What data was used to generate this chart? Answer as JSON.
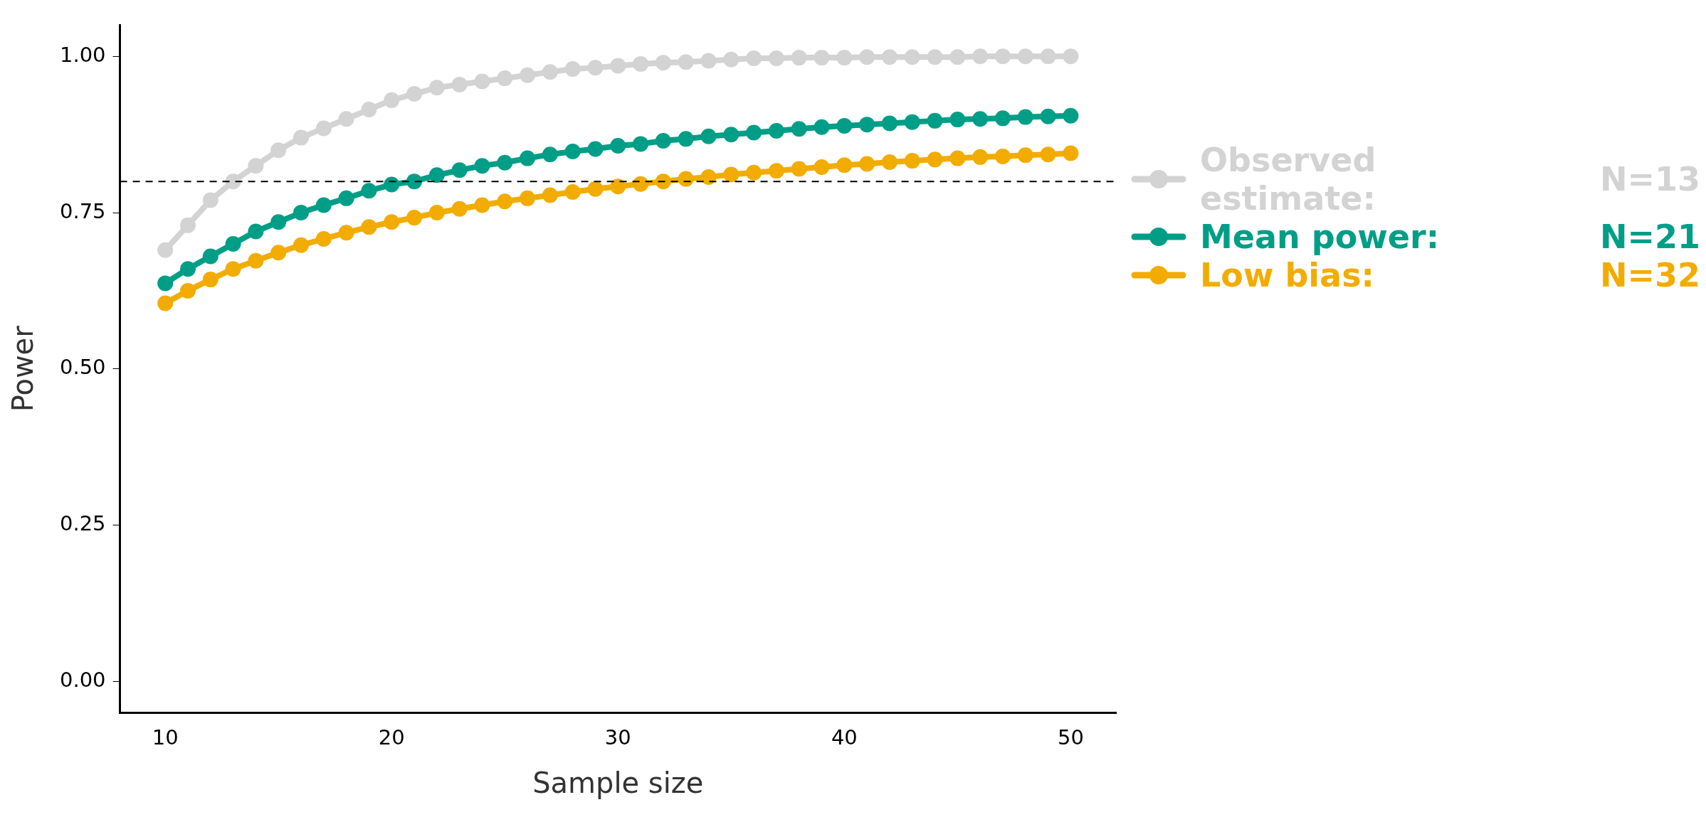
{
  "chart_data": {
    "type": "line",
    "xlabel": "Sample size",
    "ylabel": "Power",
    "x": [
      10,
      11,
      12,
      13,
      14,
      15,
      16,
      17,
      18,
      19,
      20,
      21,
      22,
      23,
      24,
      25,
      26,
      27,
      28,
      29,
      30,
      31,
      32,
      33,
      34,
      35,
      36,
      37,
      38,
      39,
      40,
      41,
      42,
      43,
      44,
      45,
      46,
      47,
      48,
      49,
      50
    ],
    "series": [
      {
        "name": "Observed estimate:",
        "color": "#d3d3d3",
        "values": [
          0.69,
          0.73,
          0.77,
          0.8,
          0.825,
          0.85,
          0.87,
          0.885,
          0.9,
          0.915,
          0.93,
          0.94,
          0.95,
          0.955,
          0.96,
          0.965,
          0.97,
          0.975,
          0.98,
          0.982,
          0.985,
          0.988,
          0.99,
          0.991,
          0.993,
          0.995,
          0.997,
          0.997,
          0.998,
          0.998,
          0.998,
          0.999,
          0.999,
          0.999,
          0.999,
          0.999,
          1.0,
          1.0,
          1.0,
          1.0,
          1.0
        ]
      },
      {
        "name": "Mean power:",
        "color": "#009e87",
        "values": [
          0.637,
          0.66,
          0.68,
          0.7,
          0.72,
          0.735,
          0.75,
          0.762,
          0.773,
          0.785,
          0.795,
          0.8,
          0.81,
          0.818,
          0.825,
          0.83,
          0.837,
          0.843,
          0.848,
          0.852,
          0.857,
          0.86,
          0.865,
          0.868,
          0.872,
          0.875,
          0.878,
          0.881,
          0.884,
          0.887,
          0.889,
          0.891,
          0.893,
          0.895,
          0.897,
          0.899,
          0.9,
          0.901,
          0.903,
          0.904,
          0.905
        ]
      },
      {
        "name": "Low bias:",
        "color": "#f2ac00",
        "values": [
          0.605,
          0.625,
          0.643,
          0.66,
          0.673,
          0.686,
          0.698,
          0.708,
          0.718,
          0.727,
          0.735,
          0.742,
          0.75,
          0.756,
          0.762,
          0.768,
          0.773,
          0.778,
          0.783,
          0.788,
          0.792,
          0.796,
          0.8,
          0.804,
          0.807,
          0.811,
          0.814,
          0.817,
          0.82,
          0.823,
          0.826,
          0.828,
          0.831,
          0.833,
          0.835,
          0.837,
          0.839,
          0.84,
          0.842,
          0.843,
          0.845
        ]
      }
    ],
    "annotations": [
      "N=13",
      "N=21",
      "N=32"
    ],
    "ref_lines": [
      {
        "axis": "y",
        "value": 0.8,
        "color": "#000000",
        "line_style": "dashed"
      }
    ],
    "xlim": [
      8,
      52
    ],
    "xticks": [
      10,
      20,
      30,
      40,
      50
    ],
    "ylim": [
      -0.05,
      1.05
    ],
    "yticks": [
      {
        "value": 0,
        "label": "0.00"
      },
      {
        "value": 0.25,
        "label": "0.25"
      },
      {
        "value": 0.5,
        "label": "0.50"
      },
      {
        "value": 0.75,
        "label": "0.75"
      },
      {
        "value": 1,
        "label": "1.00"
      }
    ],
    "grid": false,
    "legend": "right",
    "marker": "circle",
    "line_style": "solid"
  }
}
